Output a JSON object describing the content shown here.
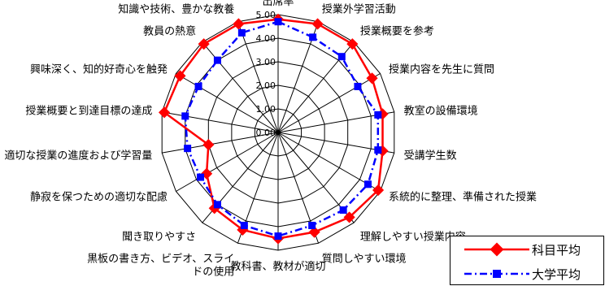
{
  "chart_data": {
    "type": "radar",
    "categories": [
      "出席率",
      "授業外学習活動",
      "授業概要を参考",
      "授業内容を先生に質問",
      "教室の設備環境",
      "受講学生数",
      "系統的に整理、準備された授業",
      "理解しやすい授業内容",
      "質問しやすい環境",
      "教科書、教材が適切",
      "黒板の書き方、ビデオ、スライドの使用",
      "聞き取りやすさ",
      "静寂を保つための適切な配慮",
      "適切な授業の進度および学習量",
      "授業概要と到達目標の達成",
      "興味深く、知的好奇心を触発",
      "教員の熱意",
      "知識や技術、豊かな教養"
    ],
    "ticks": [
      "0.00",
      "1.00",
      "2.00",
      "3.00",
      "4.00",
      "5.00"
    ],
    "rmin": 0,
    "rmax": 5,
    "series": [
      {
        "name": "科目平均",
        "color": "#ff0000",
        "values": [
          4.8,
          4.9,
          4.9,
          4.6,
          4.5,
          4.5,
          4.9,
          4.7,
          4.5,
          4.5,
          4.4,
          4.2,
          3.5,
          3.0,
          4.9,
          4.8,
          4.9,
          4.9
        ]
      },
      {
        "name": "大学平均",
        "color": "#0000ff",
        "values": [
          4.7,
          4.3,
          4.2,
          3.9,
          4.3,
          4.3,
          4.4,
          4.3,
          4.2,
          4.4,
          4.2,
          4.0,
          3.8,
          3.9,
          4.0,
          3.9,
          4.0,
          4.5
        ]
      }
    ]
  }
}
